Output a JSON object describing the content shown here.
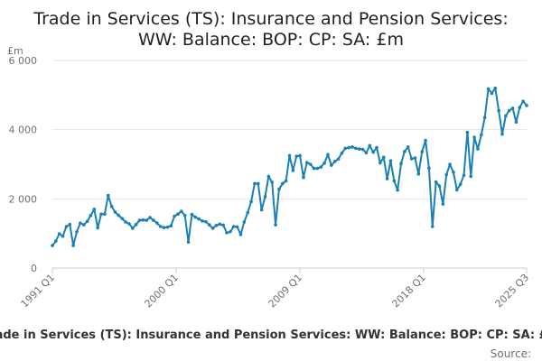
{
  "chart_data": {
    "type": "line",
    "title_line1": "Trade in Services (TS): Insurance and Pension Services:",
    "title_line2": "WW: Balance: BOP: CP: SA: £m",
    "unit_label": "£m",
    "y_ticks": [
      "0",
      "2 000",
      "4 000",
      "6 000"
    ],
    "ylim": [
      0,
      6000
    ],
    "x_tick_labels": [
      "1991 Q1",
      "2000 Q1",
      "2009 Q1",
      "2018 Q1",
      "2025 Q3"
    ],
    "x_tick_positions": [
      "1991 Q1",
      "2000 Q1",
      "2009 Q1",
      "2018 Q1",
      "2025 Q3"
    ],
    "x_start": "1991 Q1",
    "x_end": "2025 Q3",
    "legend_text": "Trade in Services (TS): Insurance and Pension Services: WW: Balance: BOP: CP: SA: £m",
    "source_text": "Source:",
    "grid": "horizontal",
    "legend_position": "bottom",
    "line_color": "#1a80b6",
    "series": [
      {
        "values": [
          650,
          780,
          990,
          920,
          1200,
          1260,
          650,
          1050,
          1300,
          1250,
          1350,
          1520,
          1700,
          1160,
          1560,
          1560,
          2100,
          1780,
          1620,
          1520,
          1430,
          1330,
          1280,
          1150,
          1260,
          1380,
          1390,
          1380,
          1460,
          1380,
          1300,
          1200,
          1170,
          1180,
          1220,
          1500,
          1560,
          1640,
          1520,
          750,
          1550,
          1470,
          1420,
          1360,
          1340,
          1250,
          1150,
          1230,
          1270,
          1240,
          1020,
          1050,
          1200,
          1190,
          970,
          1330,
          1600,
          1920,
          2440,
          2440,
          1680,
          2060,
          2650,
          2480,
          1250,
          2280,
          2440,
          2520,
          3250,
          2820,
          3230,
          3250,
          2620,
          3050,
          3000,
          2880,
          2880,
          2920,
          3030,
          3280,
          2970,
          3080,
          3150,
          3320,
          3460,
          3480,
          3500,
          3460,
          3440,
          3430,
          3330,
          3540,
          3350,
          3480,
          3040,
          3200,
          2580,
          3100,
          2520,
          2250,
          3020,
          3370,
          3500,
          3160,
          3180,
          2720,
          3360,
          3690,
          2890,
          1200,
          2490,
          2370,
          1850,
          2700,
          3000,
          2770,
          2260,
          2420,
          2680,
          3920,
          2650,
          3780,
          3440,
          3850,
          4350,
          5180,
          5050,
          5200,
          4550,
          3870,
          4400,
          4550,
          4620,
          4220,
          4640,
          4820,
          4700
        ]
      }
    ]
  }
}
